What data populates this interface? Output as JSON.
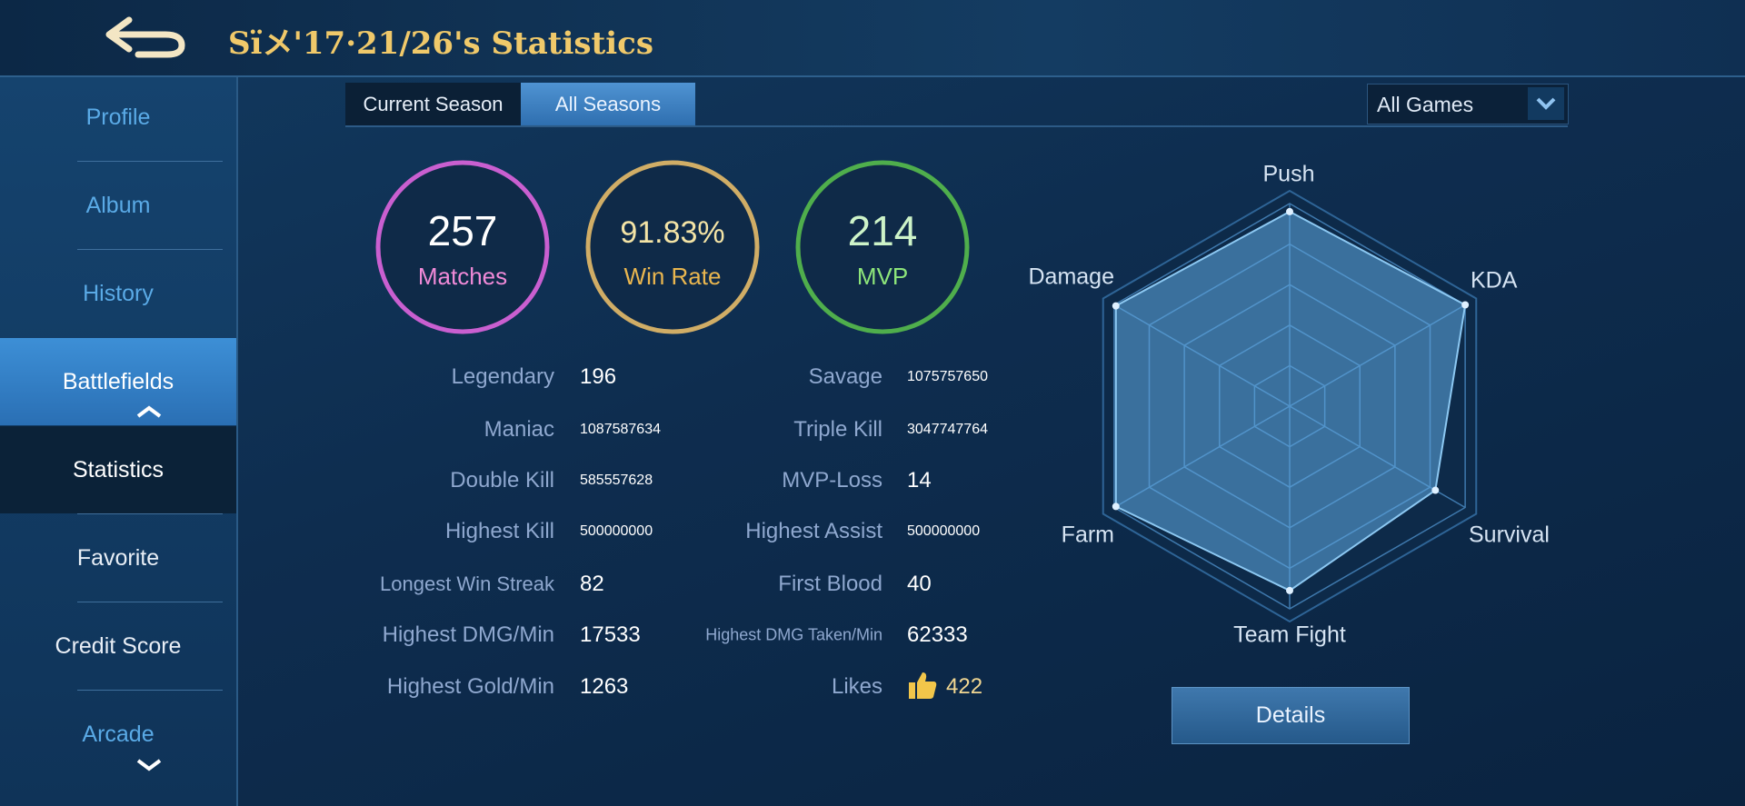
{
  "header": {
    "title": "Sïメ'17·21/26's Statistics"
  },
  "sidebar": {
    "items": [
      "Profile",
      "Album",
      "History",
      "Battlefields",
      "Statistics",
      "Favorite",
      "Credit Score",
      "Arcade"
    ]
  },
  "tabs": [
    "Current Season",
    "All Seasons"
  ],
  "filter": "All Games",
  "summary": [
    {
      "value": 257,
      "label": "Matches"
    },
    {
      "value": "91.83%",
      "label": "Win Rate"
    },
    {
      "value": 214,
      "label": "MVP"
    }
  ],
  "stats": {
    "left": [
      {
        "label": "Legendary",
        "value": 196
      },
      {
        "label": "Maniac",
        "value": 1087587634
      },
      {
        "label": "Double Kill",
        "value": 585557628
      },
      {
        "label": "Highest Kill",
        "value": 500000000
      },
      {
        "label": "Longest Win Streak",
        "value": 82
      },
      {
        "label": "Highest DMG/Min",
        "value": 17533
      },
      {
        "label": "Highest Gold/Min",
        "value": 1263
      }
    ],
    "right": [
      {
        "label": "Savage",
        "value": 1075757650
      },
      {
        "label": "Triple Kill",
        "value": 3047747764
      },
      {
        "label": "MVP-Loss",
        "value": 14
      },
      {
        "label": "Highest Assist",
        "value": 500000000
      },
      {
        "label": "First Blood",
        "value": 40
      },
      {
        "label": "Highest DMG Taken/Min",
        "value": 62333
      },
      {
        "label": "Likes",
        "value": 422
      }
    ]
  },
  "radar": {
    "axes": [
      "Push",
      "KDA",
      "Survival",
      "Team Fight",
      "Farm",
      "Damage"
    ],
    "values": [
      96,
      100,
      83,
      91,
      99,
      99
    ],
    "rlim": [
      0,
      100
    ]
  },
  "details_button": "Details"
}
